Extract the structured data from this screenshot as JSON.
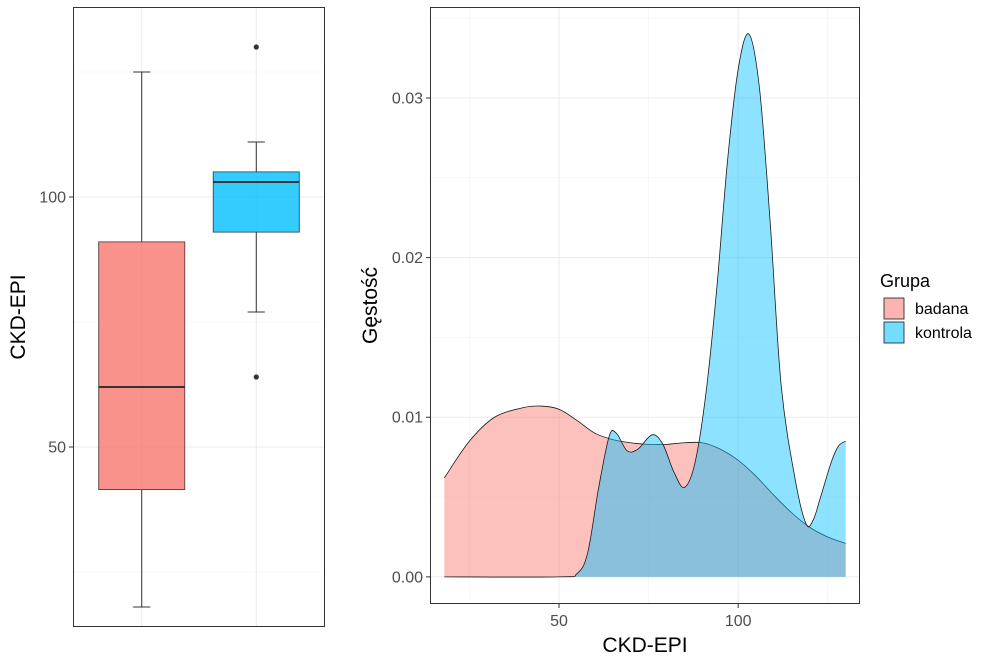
{
  "chart_data": [
    {
      "type": "boxplot",
      "ylabel": "CKD-EPI",
      "xlabel": "",
      "ylim": [
        14,
        138
      ],
      "yticks": [
        50,
        100
      ],
      "grid": true,
      "series": [
        {
          "name": "badana",
          "color": "#F8766D",
          "whisker_low": 18,
          "q1": 41.5,
          "median": 62,
          "q3": 91,
          "whisker_high": 125,
          "outliers": []
        },
        {
          "name": "kontrola",
          "color": "#00BFFF",
          "whisker_low": 77,
          "q1": 93,
          "median": 103,
          "q3": 105,
          "whisker_high": 111,
          "outliers": [
            64,
            130
          ]
        }
      ]
    },
    {
      "type": "area",
      "xlabel": "CKD-EPI",
      "ylabel": "Gęstość",
      "xlim": [
        14,
        134
      ],
      "ylim": [
        -0.0017,
        0.0357
      ],
      "xticks": [
        50,
        100
      ],
      "yticks": [
        0,
        0.01,
        0.02,
        0.03
      ],
      "ytick_labels": [
        "0.00",
        "0.01",
        "0.02",
        "0.03"
      ],
      "grid": true,
      "legend_title": "Grupa",
      "legend_position": "right",
      "series": [
        {
          "name": "badana",
          "color": "#F8766D",
          "x": [
            18,
            25,
            32,
            40,
            45,
            50,
            55,
            60,
            65,
            70,
            75,
            80,
            85,
            90,
            95,
            100,
            105,
            110,
            115,
            120,
            125,
            130
          ],
          "y": [
            0.0062,
            0.0085,
            0.01,
            0.0106,
            0.0107,
            0.0105,
            0.0098,
            0.009,
            0.0086,
            0.0084,
            0.0083,
            0.0083,
            0.0084,
            0.0084,
            0.008,
            0.0073,
            0.0063,
            0.0051,
            0.004,
            0.0031,
            0.0025,
            0.0021
          ]
        },
        {
          "name": "kontrola",
          "color": "#00BFFF",
          "x": [
            18,
            50,
            55,
            58,
            61,
            64,
            66,
            69,
            72,
            76,
            79,
            82,
            85,
            88,
            91,
            94,
            97,
            100,
            103,
            106,
            109,
            112,
            116,
            119,
            121,
            123,
            126,
            128,
            130
          ],
          "y": [
            0,
            0,
            0.0002,
            0.0015,
            0.0055,
            0.0088,
            0.009,
            0.0079,
            0.008,
            0.0089,
            0.0083,
            0.0066,
            0.0056,
            0.0072,
            0.0115,
            0.018,
            0.026,
            0.0318,
            0.034,
            0.0305,
            0.022,
            0.012,
            0.006,
            0.0033,
            0.0036,
            0.005,
            0.0072,
            0.0082,
            0.0085
          ]
        }
      ]
    }
  ]
}
